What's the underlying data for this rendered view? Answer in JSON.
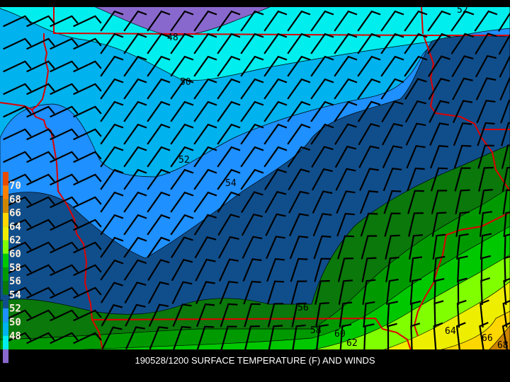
{
  "caption": "190528/1200 SURFACE TEMPERATURE (F) AND WINDS",
  "units": "F",
  "legend": [
    {
      "label": "70",
      "color": "#e84a00"
    },
    {
      "label": "68",
      "color": "#ff8000"
    },
    {
      "label": "66",
      "color": "#cd8500"
    },
    {
      "label": "64",
      "color": "#ffd700"
    },
    {
      "label": "62",
      "color": "#eeee00"
    },
    {
      "label": "60",
      "color": "#80ff00"
    },
    {
      "label": "58",
      "color": "#00c800"
    },
    {
      "label": "56",
      "color": "#009a00"
    },
    {
      "label": "54",
      "color": "#0a780a"
    },
    {
      "label": "52",
      "color": "#104e8b"
    },
    {
      "label": "50",
      "color": "#1e90ff"
    },
    {
      "label": "48",
      "color": "#00b2ee"
    },
    {
      "label": "",
      "color": "#00eeee"
    },
    {
      "label": "",
      "color": "#8968cd"
    }
  ],
  "contour_labels": {
    "c48": "48",
    "c50": "50",
    "c52a": "52",
    "c52b": "52",
    "c54": "54",
    "c56": "56",
    "c58": "58",
    "c60": "60",
    "c62": "62",
    "c64": "64",
    "c66": "66",
    "c68": "68"
  },
  "colors": {
    "border": "#e00000",
    "barb": "#000000",
    "contour": "#000000"
  }
}
